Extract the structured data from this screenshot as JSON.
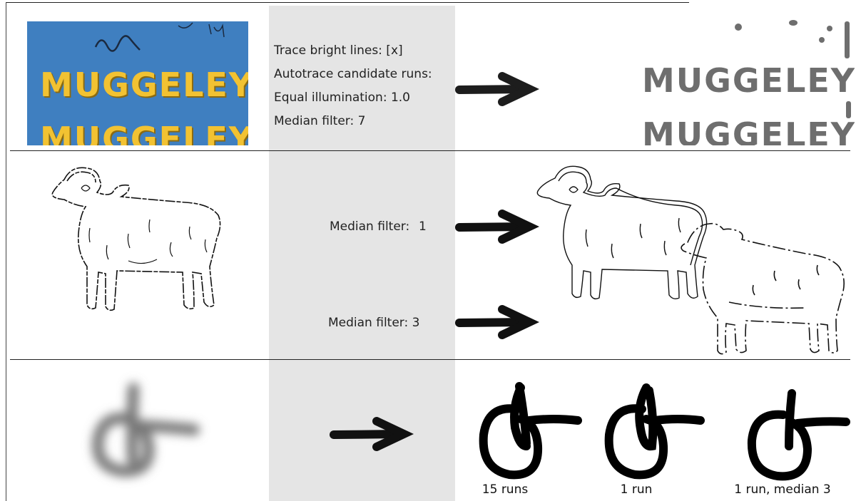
{
  "row1": {
    "settings": [
      "Trace bright lines: [x]",
      "Autotrace candidate runs:",
      "Equal illumination: 1.0",
      "Median filter: 7"
    ],
    "photo_text": [
      "MUGGELEY",
      "MUGGELEY"
    ],
    "result_text": [
      "MUGGELEY",
      "MUGGELEY"
    ]
  },
  "row2": {
    "label_a": "Median filter:",
    "value_a": "1",
    "label_b": "Median filter: 3"
  },
  "row3": {
    "captions": [
      "15 runs",
      "1 run",
      "1 run, median 3"
    ]
  },
  "colors": {
    "photo_background": "#3f7fc0",
    "letter_fill": "#f2c232",
    "trace_gray": "#6e6e6e",
    "arrow": "#111111",
    "column_gray": "#e5e5e5"
  }
}
